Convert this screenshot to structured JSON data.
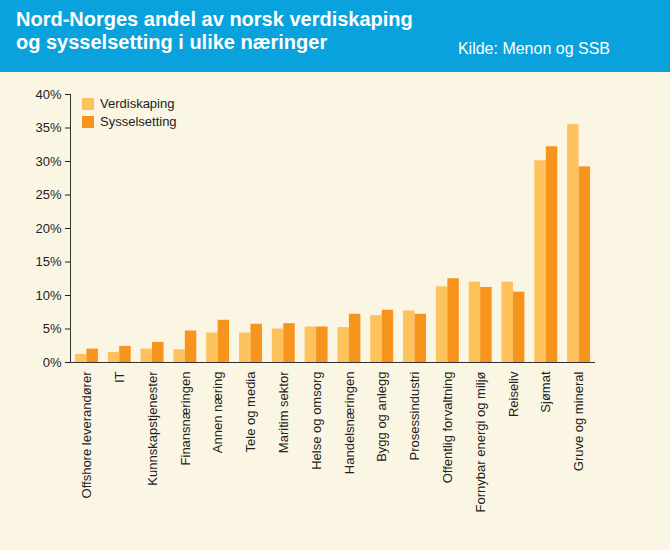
{
  "chart_data": {
    "type": "bar",
    "title": "Nord-Norges andel av norsk verdiskaping\nog sysselsetting i ulike næringer",
    "subtitle": "Kilde: Menon og SSB",
    "categories": [
      "Offshore leverandører",
      "IT",
      "Kunnskapstjenester",
      "Finansnæringen",
      "Annen næring",
      "Tele og media",
      "Maritim sektor",
      "Helse og omsorg",
      "Handelsnæringen",
      "Bygg og anlegg",
      "Prosessindustri",
      "Offentlig forvaltning",
      "Fornybar energi og miljø",
      "Reiseliv",
      "Sjømat",
      "Gruve og mineral"
    ],
    "series": [
      {
        "name": "Verdiskaping",
        "color": "#fdc25c",
        "values": [
          1.2,
          1.5,
          2.0,
          1.9,
          4.4,
          4.4,
          5.0,
          5.3,
          5.2,
          7.0,
          7.7,
          11.3,
          12.0,
          12.0,
          30.1,
          35.5
        ]
      },
      {
        "name": "Sysselsetting",
        "color": "#f7941d",
        "values": [
          2.0,
          2.4,
          3.0,
          4.7,
          6.3,
          5.7,
          5.8,
          5.3,
          7.2,
          7.8,
          7.2,
          12.5,
          11.2,
          10.5,
          32.2,
          29.2
        ]
      }
    ],
    "ylim": [
      0,
      40
    ],
    "yticks": [
      {
        "value": 0,
        "label": "0%"
      },
      {
        "value": 5,
        "label": "5%"
      },
      {
        "value": 10,
        "label": "10%"
      },
      {
        "value": 15,
        "label": "15%"
      },
      {
        "value": 20,
        "label": "20%"
      },
      {
        "value": 25,
        "label": "25%"
      },
      {
        "value": 30,
        "label": "30%"
      },
      {
        "value": 35,
        "label": "35%"
      },
      {
        "value": 40,
        "label": "40%"
      }
    ],
    "legend": "top-left",
    "grid": false
  }
}
